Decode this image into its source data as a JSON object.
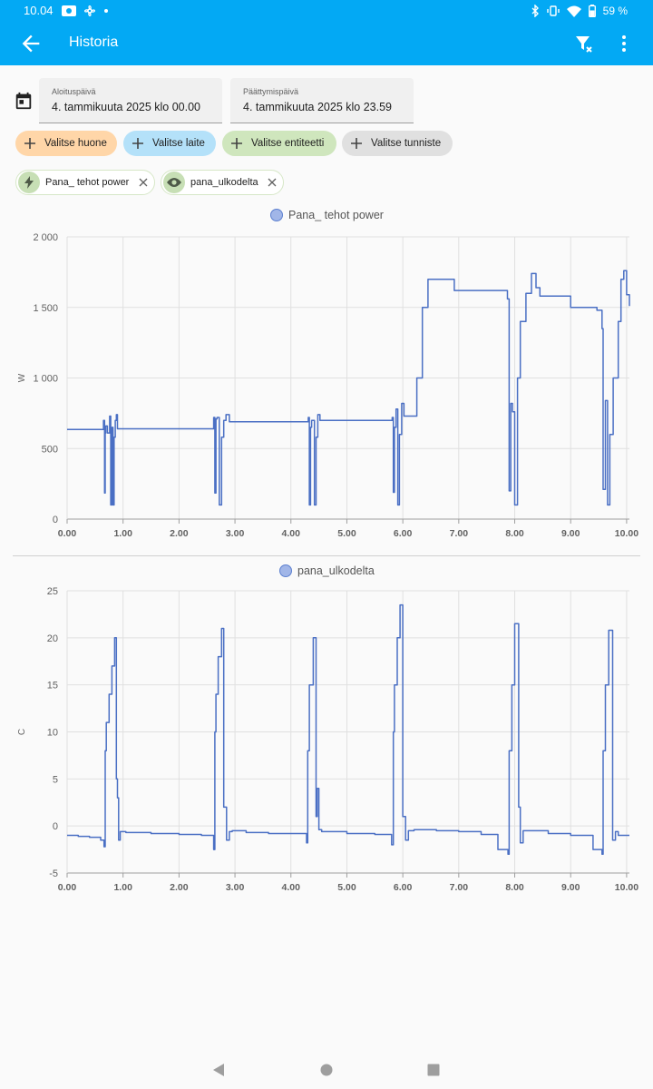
{
  "status": {
    "time": "10.04",
    "battery": "59 %"
  },
  "appbar": {
    "title": "Historia",
    "icons": [
      "back-arrow-icon",
      "filter-remove-icon",
      "more-vert-icon"
    ]
  },
  "dates": {
    "start_label": "Aloituspäivä",
    "start_value": "4. tammikuuta 2025 klo 00.00",
    "end_label": "Päättymispäivä",
    "end_value": "4. tammikuuta 2025 klo 23.59"
  },
  "pickers": {
    "area": "Valitse huone",
    "device": "Valitse laite",
    "entity": "Valitse entiteetti",
    "label": "Valitse tunniste"
  },
  "chips": {
    "power": "Pana_ tehot power",
    "temp": "pana_ulkodelta"
  },
  "colors": {
    "primary": "#03a9f4",
    "series": "#4a6fc4",
    "area_chip": "#ffd6a8",
    "device_chip": "#b4e1f9",
    "entity_chip": "#cfe6bd",
    "label_chip": "#e0e0e0"
  },
  "chart_data": [
    {
      "type": "line",
      "title": "Pana_ tehot power",
      "ylabel": "W",
      "ylim": [
        0,
        2000
      ],
      "xlim": [
        0,
        10.05
      ],
      "yticks": [
        "2 000",
        "1 500",
        "1 000",
        "500",
        "0"
      ],
      "xticks": [
        "0.00",
        "1.00",
        "2.00",
        "3.00",
        "4.00",
        "5.00",
        "6.00",
        "7.00",
        "8.00",
        "9.00",
        "10.00"
      ],
      "grid": true,
      "series": [
        {
          "name": "Pana_ tehot power",
          "x": [
            0,
            0.64,
            0.65,
            0.67,
            0.68,
            0.69,
            0.72,
            0.76,
            0.78,
            0.8,
            0.82,
            0.84,
            0.86,
            0.88,
            0.9,
            0.94,
            0.97,
            1.0,
            1.03,
            2.6,
            2.62,
            2.64,
            2.66,
            2.68,
            2.72,
            2.76,
            2.8,
            2.84,
            2.9,
            2.94,
            4.3,
            4.31,
            4.33,
            4.35,
            4.37,
            4.42,
            4.45,
            4.48,
            4.52,
            4.56,
            5.8,
            5.81,
            5.83,
            5.85,
            5.88,
            5.91,
            5.94,
            5.98,
            6.02,
            6.06,
            6.1,
            6.25,
            6.35,
            6.45,
            6.5,
            6.6,
            6.9,
            6.92,
            7.85,
            7.87,
            7.9,
            7.93,
            7.96,
            8.0,
            8.05,
            8.1,
            8.2,
            8.3,
            8.38,
            8.42,
            8.45,
            8.5,
            8.85,
            9.0,
            9.45,
            9.47,
            9.52,
            9.56,
            9.58,
            9.62,
            9.66,
            9.7,
            9.76,
            9.85,
            9.9,
            9.95,
            10.0,
            10.05
          ],
          "y": [
            635,
            635,
            700,
            185,
            610,
            660,
            610,
            730,
            100,
            650,
            100,
            580,
            700,
            740,
            640,
            640,
            640,
            640,
            640,
            640,
            720,
            185,
            710,
            720,
            100,
            580,
            700,
            740,
            690,
            690,
            690,
            720,
            100,
            650,
            700,
            100,
            580,
            740,
            700,
            700,
            700,
            720,
            190,
            650,
            780,
            100,
            600,
            820,
            730,
            730,
            730,
            1000,
            1500,
            1700,
            1700,
            1700,
            1700,
            1620,
            1620,
            1560,
            200,
            820,
            760,
            100,
            1000,
            1400,
            1600,
            1740,
            1640,
            1640,
            1580,
            1580,
            1580,
            1500,
            1500,
            1480,
            1480,
            1350,
            210,
            840,
            100,
            600,
            1000,
            1400,
            1700,
            1760,
            1590,
            1510
          ]
        }
      ]
    },
    {
      "type": "line",
      "title": "pana_ulkodelta",
      "ylabel": "C",
      "ylim": [
        -5,
        25
      ],
      "xlim": [
        0,
        10.05
      ],
      "yticks": [
        "25",
        "20",
        "15",
        "10",
        "5",
        "0",
        "-5"
      ],
      "xticks": [
        "0.00",
        "1.00",
        "2.00",
        "3.00",
        "4.00",
        "5.00",
        "6.00",
        "7.00",
        "8.00",
        "9.00",
        "10.00"
      ],
      "grid": true,
      "series": [
        {
          "name": "pana_ulkodelta",
          "x": [
            0,
            0.2,
            0.4,
            0.6,
            0.66,
            0.68,
            0.7,
            0.75,
            0.8,
            0.85,
            0.88,
            0.9,
            0.92,
            0.95,
            1.05,
            1.5,
            2.0,
            2.4,
            2.62,
            2.64,
            2.66,
            2.7,
            2.76,
            2.8,
            2.85,
            2.9,
            2.95,
            3.2,
            3.6,
            4.0,
            4.28,
            4.3,
            4.33,
            4.4,
            4.45,
            4.47,
            4.5,
            4.55,
            5.0,
            5.5,
            5.8,
            5.83,
            5.85,
            5.9,
            5.95,
            6.0,
            6.05,
            6.1,
            6.2,
            6.6,
            7.0,
            7.4,
            7.7,
            7.88,
            7.9,
            7.95,
            8.0,
            8.07,
            8.1,
            8.15,
            8.2,
            8.6,
            9.0,
            9.4,
            9.56,
            9.58,
            9.62,
            9.68,
            9.75,
            9.8,
            9.85,
            10.0,
            10.05
          ],
          "y": [
            -1.0,
            -1.1,
            -1.2,
            -1.5,
            -2.2,
            8.0,
            11.0,
            14.0,
            17.0,
            20.0,
            5.0,
            3.0,
            -1.5,
            -0.6,
            -0.7,
            -0.8,
            -0.9,
            -1.0,
            -2.5,
            10.0,
            14.0,
            18.0,
            21.0,
            2.0,
            -1.5,
            -0.6,
            -0.5,
            -0.7,
            -0.8,
            -0.8,
            -1.8,
            8.0,
            15.0,
            20.0,
            1.0,
            4.0,
            -0.4,
            -0.6,
            -0.8,
            -0.9,
            -2.0,
            10.0,
            15.0,
            20.0,
            23.5,
            1.0,
            -1.5,
            -0.5,
            -0.4,
            -0.5,
            -0.6,
            -0.9,
            -2.5,
            -3.0,
            8.0,
            15.0,
            21.5,
            2.0,
            -1.8,
            -0.5,
            -0.5,
            -0.8,
            -1.0,
            -2.5,
            -3.0,
            8.0,
            15.0,
            20.8,
            -1.5,
            -0.6,
            -1.0,
            -1.0,
            -1.0
          ]
        }
      ]
    }
  ]
}
